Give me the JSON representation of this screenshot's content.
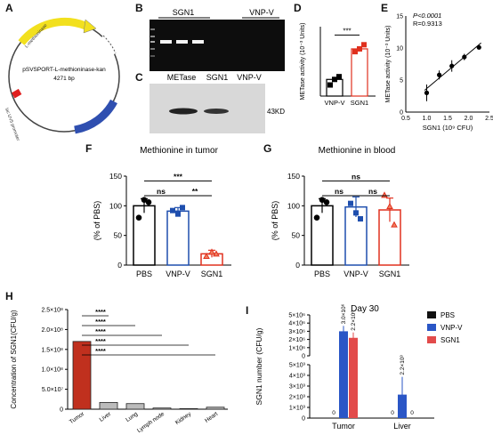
{
  "panels": {
    "A": {
      "letter": "A",
      "plasmid_name": "pSVSPORT-L-methioninase-kan",
      "plasmid_size": "4271 bp",
      "features": [
        "L-methioninase",
        "lac UV5 promoter",
        "KanR"
      ],
      "colors": {
        "methioninase": "#f2e01e",
        "kan": "#2f4fb0",
        "promoter": "#e02020"
      }
    },
    "B": {
      "letter": "B",
      "label_sgn1": "SGN1",
      "label_vnpv": "VNP-V"
    },
    "C": {
      "letter": "C",
      "lanes": [
        "METase",
        "SGN1",
        "VNP-V"
      ],
      "mw": "43KD"
    },
    "D": {
      "letter": "D",
      "sig": "***"
    },
    "E": {
      "letter": "E",
      "stat_p": "P<0.0001",
      "stat_r": "R=0.9313"
    },
    "F": {
      "letter": "F",
      "title": "Methionine in tumor"
    },
    "G": {
      "letter": "G",
      "title": "Methionine in blood"
    },
    "H": {
      "letter": "H"
    },
    "I": {
      "letter": "I",
      "title": "Day 30"
    }
  },
  "chart_data": [
    {
      "id": "D",
      "type": "bar",
      "ylabel": "METase activity (10⁻³ Units)",
      "categories": [
        "VNP-V",
        "SGN1"
      ],
      "values": [
        0.6,
        1.7
      ],
      "points": [
        [
          0.4,
          0.6,
          0.7
        ],
        [
          1.6,
          1.7,
          1.85
        ]
      ],
      "ylim": [
        0,
        2.5
      ],
      "colors": [
        "#000000",
        "#e0301e"
      ],
      "sig": "***"
    },
    {
      "id": "E",
      "type": "scatter",
      "xlabel": "SGN1 (10⁹ CFU)",
      "ylabel": "METase activity (10⁻³ Units)",
      "xticks": [
        "0.5",
        "1.0",
        "1.5",
        "2.0",
        "2.5"
      ],
      "yticks": [
        "0",
        "5",
        "10",
        "15"
      ],
      "xlim": [
        0.5,
        2.5
      ],
      "ylim": [
        0,
        15
      ],
      "x": [
        1.0,
        1.3,
        1.6,
        1.9,
        2.25
      ],
      "y": [
        3.0,
        5.8,
        7.2,
        8.6,
        10.1
      ],
      "err": [
        1.3,
        0.7,
        0.9,
        0.5,
        0.3
      ],
      "fit": [
        [
          0.95,
          3.4
        ],
        [
          2.3,
          10.8
        ]
      ]
    },
    {
      "id": "F",
      "type": "bar",
      "title": "Methionine in tumor",
      "ylabel": "(% of PBS)",
      "categories": [
        "PBS",
        "VNP-V",
        "SGN1"
      ],
      "yticks": [
        "0",
        "50",
        "100",
        "150"
      ],
      "ylim": [
        0,
        150
      ],
      "values": [
        100,
        91,
        19
      ],
      "err": [
        12,
        6,
        6
      ],
      "points": [
        [
          80,
          110,
          106
        ],
        [
          92,
          86,
          97
        ],
        [
          15,
          22,
          19
        ]
      ],
      "colors": [
        "#000000",
        "#1f4fae",
        "#e0301e"
      ],
      "markers": [
        "circle",
        "square",
        "triangle"
      ],
      "sig": [
        {
          "from": 0,
          "to": 2,
          "label": "***",
          "y": 142
        },
        {
          "from": 0,
          "to": 1,
          "label": "ns",
          "y": 117
        },
        {
          "from": 1,
          "to": 2,
          "label": "**",
          "y": 117
        }
      ]
    },
    {
      "id": "G",
      "type": "bar",
      "title": "Methionine in blood",
      "ylabel": "(% of PBS)",
      "categories": [
        "PBS",
        "VNP-V",
        "SGN1"
      ],
      "yticks": [
        "0",
        "50",
        "100",
        "150"
      ],
      "ylim": [
        0,
        150
      ],
      "values": [
        100,
        98,
        93
      ],
      "err": [
        12,
        17,
        20
      ],
      "points": [
        [
          80,
          110,
          106
        ],
        [
          104,
          88,
          78
        ],
        [
          118,
          99,
          68
        ]
      ],
      "colors": [
        "#000000",
        "#1f4fae",
        "#e0301e"
      ],
      "markers": [
        "circle",
        "square",
        "triangle"
      ],
      "sig": [
        {
          "from": 0,
          "to": 2,
          "label": "ns",
          "y": 142
        },
        {
          "from": 0,
          "to": 1,
          "label": "ns",
          "y": 117
        },
        {
          "from": 1,
          "to": 2,
          "label": "ns",
          "y": 117
        }
      ]
    },
    {
      "id": "H",
      "type": "bar",
      "ylabel": "Concentration of SGN1(CFU/g)",
      "categories": [
        "Tumor",
        "Liver",
        "Lung",
        "Lymph node",
        "Kidney",
        "Heart"
      ],
      "yticks": [
        "0",
        "5.0×10⁷",
        "1.0×10⁸",
        "1.5×10⁸",
        "2.0×10⁸",
        "2.5×10⁸"
      ],
      "ylim": [
        0,
        250000000
      ],
      "values": [
        170000000,
        17000000,
        14000000,
        3000000,
        1500000,
        5000000
      ],
      "colors": [
        "#c0301e",
        "#bbbbbb",
        "#bbbbbb",
        "#bbbbbb",
        "#bbbbbb",
        "#bbbbbb"
      ],
      "sig": [
        {
          "to": 1,
          "label": "****"
        },
        {
          "to": 2,
          "label": "****"
        },
        {
          "to": 3,
          "label": "****"
        },
        {
          "to": 4,
          "label": "****"
        },
        {
          "to": 5,
          "label": "****"
        }
      ]
    },
    {
      "id": "I",
      "type": "bar",
      "title": "Day 30",
      "ylabel": "SGN1 number (CFU/g)",
      "groups": [
        "Tumor",
        "Liver"
      ],
      "series": [
        {
          "name": "PBS",
          "values": [
            0,
            0
          ],
          "color": "#111111"
        },
        {
          "name": "VNP-V",
          "values": [
            3.0,
            2.2
          ],
          "color": "#2a56c6"
        },
        {
          "name": "SGN1",
          "values": [
            2.2,
            0
          ],
          "color": "#e24b4b"
        }
      ],
      "value_labels": [
        [
          "0",
          "3.0×10⁶",
          "2.2×10⁶"
        ],
        [
          "0",
          "2.2×10³",
          "0"
        ]
      ],
      "yticks_top": [
        "0",
        "1×10⁶",
        "2×10⁶",
        "3×10⁶",
        "4×10⁶",
        "5×10⁶"
      ],
      "yticks_bottom": [
        "0",
        "1×10³",
        "2×10³",
        "3×10³",
        "4×10³",
        "5×10³"
      ]
    }
  ]
}
